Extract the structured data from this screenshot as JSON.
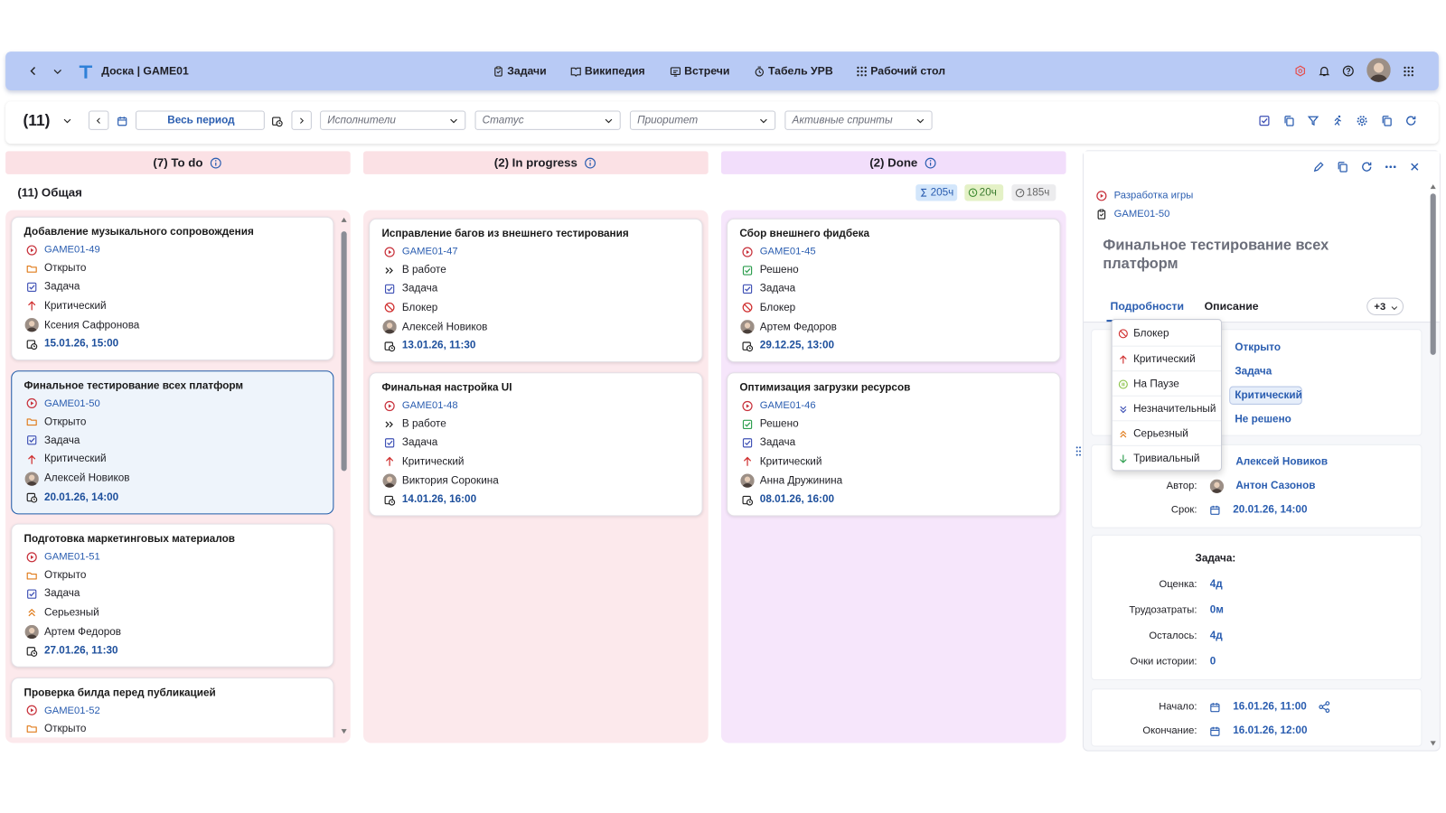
{
  "header": {
    "board": "Доска | GAME01",
    "nav": [
      "Задачи",
      "Википедия",
      "Встречи",
      "Табель УРВ",
      "Рабочий стол"
    ]
  },
  "toolbar": {
    "count": "(11)",
    "period": "Весь период",
    "filters": [
      "Исполнители",
      "Статус",
      "Приоритет",
      "Активные спринты"
    ]
  },
  "group": {
    "title": "(11) Общая",
    "stats": [
      "205ч",
      "20ч",
      "185ч"
    ]
  },
  "columns": [
    {
      "title": "(7) To do",
      "cards": [
        {
          "title": "Добавление музыкального сопровождения",
          "key": "GAME01-49",
          "status": "Открыто",
          "type": "Задача",
          "priority": "Критический",
          "assignee": "Ксения Сафронова",
          "date": "15.01.26, 15:00"
        },
        {
          "title": "Финальное тестирование всех платформ",
          "key": "GAME01-50",
          "status": "Открыто",
          "type": "Задача",
          "priority": "Критический",
          "assignee": "Алексей Новиков",
          "date": "20.01.26, 14:00"
        },
        {
          "title": "Подготовка маркетинговых материалов",
          "key": "GAME01-51",
          "status": "Открыто",
          "type": "Задача",
          "priority": "Серьезный",
          "assignee": "Артем Федоров",
          "date": "27.01.26, 11:30"
        },
        {
          "title": "Проверка билда перед публикацией",
          "key": "GAME01-52",
          "status": "Открыто"
        }
      ]
    },
    {
      "title": "(2) In progress",
      "cards": [
        {
          "title": "Исправление багов из внешнего тестирования",
          "key": "GAME01-47",
          "status": "В работе",
          "type": "Задача",
          "priority": "Блокер",
          "assignee": "Алексей Новиков",
          "date": "13.01.26, 11:30"
        },
        {
          "title": "Финальная настройка UI",
          "key": "GAME01-48",
          "status": "В работе",
          "type": "Задача",
          "priority": "Критический",
          "assignee": "Виктория Сорокина",
          "date": "14.01.26, 16:00"
        }
      ]
    },
    {
      "title": "(2) Done",
      "cards": [
        {
          "title": "Сбор внешнего фидбека",
          "key": "GAME01-45",
          "status": "Решено",
          "type": "Задача",
          "priority": "Блокер",
          "assignee": "Артем Федоров",
          "date": "29.12.25, 13:00"
        },
        {
          "title": "Оптимизация загрузки ресурсов",
          "key": "GAME01-46",
          "status": "Решено",
          "type": "Задача",
          "priority": "Критический",
          "assignee": "Анна Дружинина",
          "date": "08.01.26, 16:00"
        }
      ]
    }
  ],
  "panel": {
    "project": "Разработка игры",
    "key": "GAME01-50",
    "title": "Финальное тестирование всех платформ",
    "tabs": [
      "Подробности",
      "Описание"
    ],
    "more": "+3",
    "main_values": [
      "Открыто",
      "Задача",
      "Критический",
      "Не решено"
    ],
    "dropdown": [
      "Блокер",
      "Критический",
      "На Паузе",
      "Незначительный",
      "Серьезный",
      "Тривиальный"
    ],
    "assignee": "Алексей Новиков",
    "author_label": "Автор:",
    "author": "Антон Сазонов",
    "due_label": "Срок:",
    "due": "20.01.26, 14:00",
    "time_heading": "Задача:",
    "time_rows": [
      {
        "label": "Оценка:",
        "value": "4д"
      },
      {
        "label": "Трудозатраты:",
        "value": "0м"
      },
      {
        "label": "Осталось:",
        "value": "4д"
      },
      {
        "label": "Очки истории:",
        "value": "0"
      }
    ],
    "start_label": "Начало:",
    "start": "16.01.26, 11:00",
    "end_label": "Окончание:",
    "end": "16.01.26, 12:00"
  }
}
